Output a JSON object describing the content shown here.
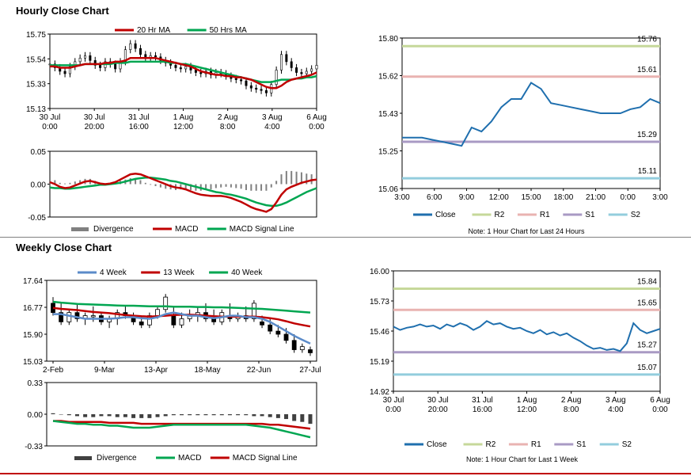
{
  "hourly": {
    "title": "Hourly Close Chart",
    "price": {
      "legend": [
        "20 Hr MA",
        "50 Hrs MA"
      ],
      "colors": {
        "ma20": "#c00000",
        "ma50": "#00a651",
        "candle": "#000000"
      },
      "ylim": [
        15.13,
        15.75
      ],
      "yticks": [
        "15.75",
        "15.54",
        "15.33",
        "15.13"
      ],
      "xticks": [
        [
          "30 Jul",
          "0:00"
        ],
        [
          "30 Jul",
          "20:00"
        ],
        [
          "31 Jul",
          "16:00"
        ],
        [
          "1 Aug",
          "12:00"
        ],
        [
          "2 Aug",
          "8:00"
        ],
        [
          "3 Aug",
          "4:00"
        ],
        [
          "6 Aug",
          "0:00"
        ]
      ],
      "close": [
        15.5,
        15.47,
        15.44,
        15.42,
        15.48,
        15.52,
        15.55,
        15.57,
        15.53,
        15.49,
        15.47,
        15.52,
        15.5,
        15.46,
        15.52,
        15.62,
        15.67,
        15.63,
        15.58,
        15.55,
        15.57,
        15.56,
        15.53,
        15.51,
        15.49,
        15.47,
        15.46,
        15.48,
        15.45,
        15.43,
        15.42,
        15.44,
        15.41,
        15.43,
        15.42,
        15.4,
        15.38,
        15.37,
        15.36,
        15.32,
        15.3,
        15.29,
        15.28,
        15.26,
        15.33,
        15.45,
        15.58,
        15.52,
        15.47,
        15.43,
        15.42,
        15.44,
        15.46,
        15.49
      ],
      "ma20": [
        15.48,
        15.48,
        15.47,
        15.47,
        15.47,
        15.48,
        15.49,
        15.5,
        15.5,
        15.5,
        15.5,
        15.51,
        15.51,
        15.52,
        15.52,
        15.53,
        15.55,
        15.55,
        15.55,
        15.55,
        15.55,
        15.55,
        15.54,
        15.53,
        15.52,
        15.51,
        15.5,
        15.49,
        15.48,
        15.46,
        15.44,
        15.43,
        15.42,
        15.41,
        15.41,
        15.4,
        15.4,
        15.39,
        15.39,
        15.38,
        15.37,
        15.35,
        15.33,
        15.31,
        15.3,
        15.3,
        15.32,
        15.35,
        15.37,
        15.38,
        15.39,
        15.4,
        15.41,
        15.43
      ],
      "ma50": [
        15.49,
        15.49,
        15.49,
        15.49,
        15.49,
        15.49,
        15.49,
        15.5,
        15.5,
        15.5,
        15.5,
        15.5,
        15.5,
        15.51,
        15.51,
        15.51,
        15.52,
        15.52,
        15.52,
        15.52,
        15.52,
        15.52,
        15.52,
        15.52,
        15.51,
        15.51,
        15.5,
        15.5,
        15.49,
        15.48,
        15.47,
        15.46,
        15.45,
        15.44,
        15.43,
        15.42,
        15.41,
        15.4,
        15.39,
        15.38,
        15.37,
        15.36,
        15.35,
        15.35,
        15.35,
        15.36,
        15.37,
        15.37,
        15.37,
        15.38,
        15.38,
        15.39,
        15.39,
        15.4
      ]
    },
    "macd": {
      "legend": [
        "Divergence",
        "MACD",
        "MACD Signal Line"
      ],
      "colors": {
        "macd": "#c00000",
        "signal": "#00a651",
        "div": "#808080"
      },
      "ylim": [
        -0.05,
        0.05
      ],
      "yticks": [
        "0.05",
        "0.00",
        "-0.05"
      ],
      "macd": [
        0.003,
        0.0,
        -0.004,
        -0.006,
        -0.005,
        -0.002,
        0.001,
        0.004,
        0.005,
        0.003,
        0.001,
        0.0,
        0.001,
        0.003,
        0.007,
        0.011,
        0.015,
        0.016,
        0.015,
        0.012,
        0.009,
        0.006,
        0.003,
        0.0,
        -0.003,
        -0.005,
        -0.006,
        -0.008,
        -0.011,
        -0.014,
        -0.016,
        -0.017,
        -0.018,
        -0.018,
        -0.018,
        -0.019,
        -0.021,
        -0.024,
        -0.027,
        -0.031,
        -0.035,
        -0.038,
        -0.04,
        -0.042,
        -0.038,
        -0.028,
        -0.016,
        -0.008,
        -0.004,
        -0.001,
        0.002,
        0.004,
        0.006,
        0.007
      ],
      "signal": [
        -0.005,
        -0.006,
        -0.006,
        -0.007,
        -0.007,
        -0.006,
        -0.005,
        -0.004,
        -0.003,
        -0.002,
        -0.001,
        -0.001,
        -0.0,
        0.001,
        0.002,
        0.004,
        0.006,
        0.008,
        0.009,
        0.01,
        0.01,
        0.009,
        0.008,
        0.007,
        0.005,
        0.004,
        0.002,
        0.0,
        -0.002,
        -0.004,
        -0.006,
        -0.008,
        -0.01,
        -0.012,
        -0.013,
        -0.015,
        -0.016,
        -0.018,
        -0.02,
        -0.022,
        -0.025,
        -0.028,
        -0.03,
        -0.032,
        -0.033,
        -0.033,
        -0.031,
        -0.028,
        -0.024,
        -0.02,
        -0.016,
        -0.012,
        -0.009,
        -0.006
      ]
    },
    "levels": {
      "ylim": [
        15.06,
        15.8
      ],
      "yticks": [
        "15.80",
        "15.62",
        "15.43",
        "15.25",
        "15.06"
      ],
      "xticks": [
        "3:00",
        "6:00",
        "9:00",
        "12:00",
        "15:00",
        "18:00",
        "21:00",
        "0:00",
        "3:00"
      ],
      "close": [
        15.31,
        15.31,
        15.31,
        15.3,
        15.29,
        15.28,
        15.27,
        15.36,
        15.34,
        15.39,
        15.46,
        15.5,
        15.5,
        15.58,
        15.55,
        15.48,
        15.47,
        15.46,
        15.45,
        15.44,
        15.43,
        15.43,
        15.43,
        15.45,
        15.46,
        15.5,
        15.48
      ],
      "R2": 15.76,
      "R1": 15.61,
      "S1": 15.29,
      "S2": 15.11,
      "level_labels": {
        "R2": "15.76",
        "R1": "15.61",
        "S1": "15.29",
        "S2": "15.11"
      },
      "legend": [
        "Close",
        "R2",
        "R1",
        "S1",
        "S2"
      ],
      "colors": {
        "close": "#1f6fae",
        "R2": "#c6d89a",
        "R1": "#e9b3b1",
        "S1": "#a99ac4",
        "S2": "#93cddd"
      },
      "note": "Note: 1 Hour Chart for Last 24 Hours"
    }
  },
  "weekly": {
    "title": "Weekly Close Chart",
    "price": {
      "legend": [
        "4 Week",
        "13 Week",
        "40 Week"
      ],
      "colors": {
        "w4": "#5b8bc9",
        "w13": "#c00000",
        "w40": "#00a651"
      },
      "ylim": [
        15.03,
        17.64
      ],
      "yticks": [
        "17.64",
        "16.77",
        "15.90",
        "15.03"
      ],
      "xticks": [
        "2-Feb",
        "9-Mar",
        "13-Apr",
        "18-May",
        "22-Jun",
        "27-Jul"
      ],
      "candles": [
        [
          16.9,
          17.1,
          16.5,
          16.6
        ],
        [
          16.6,
          16.9,
          16.2,
          16.3
        ],
        [
          16.3,
          16.7,
          16.2,
          16.6
        ],
        [
          16.6,
          16.9,
          16.3,
          16.4
        ],
        [
          16.4,
          16.6,
          16.2,
          16.5
        ],
        [
          16.5,
          16.8,
          16.3,
          16.5
        ],
        [
          16.5,
          16.6,
          16.2,
          16.3
        ],
        [
          16.3,
          16.5,
          16.1,
          16.4
        ],
        [
          16.4,
          16.7,
          16.2,
          16.6
        ],
        [
          16.6,
          16.8,
          16.4,
          16.5
        ],
        [
          16.5,
          16.6,
          16.2,
          16.3
        ],
        [
          16.3,
          16.5,
          16.1,
          16.2
        ],
        [
          16.2,
          16.6,
          16.1,
          16.5
        ],
        [
          16.5,
          16.8,
          16.4,
          16.7
        ],
        [
          16.7,
          17.2,
          16.6,
          17.1
        ],
        [
          16.5,
          16.8,
          16.1,
          16.2
        ],
        [
          16.2,
          16.6,
          16.1,
          16.4
        ],
        [
          16.4,
          16.7,
          16.3,
          16.5
        ],
        [
          16.5,
          16.8,
          16.3,
          16.6
        ],
        [
          16.6,
          16.9,
          16.3,
          16.4
        ],
        [
          16.4,
          16.7,
          16.2,
          16.3
        ],
        [
          16.3,
          16.7,
          16.2,
          16.6
        ],
        [
          16.5,
          16.9,
          16.3,
          16.4
        ],
        [
          16.4,
          16.6,
          16.3,
          16.5
        ],
        [
          16.5,
          16.8,
          16.3,
          16.4
        ],
        [
          16.4,
          17.0,
          16.3,
          16.9
        ],
        [
          16.3,
          16.5,
          16.1,
          16.2
        ],
        [
          16.2,
          16.4,
          15.9,
          16.0
        ],
        [
          16.0,
          16.2,
          15.8,
          15.9
        ],
        [
          15.9,
          16.1,
          15.6,
          15.7
        ],
        [
          15.7,
          15.9,
          15.3,
          15.4
        ],
        [
          15.4,
          15.6,
          15.3,
          15.5
        ],
        [
          15.4,
          15.5,
          15.2,
          15.3
        ]
      ],
      "w4": [
        16.55,
        16.55,
        16.5,
        16.45,
        16.4,
        16.4,
        16.4,
        16.4,
        16.42,
        16.45,
        16.45,
        16.42,
        16.4,
        16.45,
        16.55,
        16.6,
        16.55,
        16.5,
        16.5,
        16.45,
        16.42,
        16.45,
        16.5,
        16.5,
        16.45,
        16.45,
        16.4,
        16.3,
        16.15,
        16.0,
        15.85,
        15.72,
        15.6
      ],
      "w13": [
        16.75,
        16.72,
        16.7,
        16.68,
        16.65,
        16.62,
        16.6,
        16.58,
        16.55,
        16.52,
        16.5,
        16.48,
        16.47,
        16.48,
        16.5,
        16.52,
        16.53,
        16.53,
        16.52,
        16.5,
        16.48,
        16.47,
        16.47,
        16.47,
        16.47,
        16.47,
        16.45,
        16.42,
        16.38,
        16.32,
        16.25,
        16.2,
        16.15
      ],
      "w40": [
        16.95,
        16.92,
        16.9,
        16.88,
        16.87,
        16.86,
        16.85,
        16.84,
        16.83,
        16.82,
        16.82,
        16.81,
        16.8,
        16.8,
        16.8,
        16.79,
        16.79,
        16.79,
        16.78,
        16.78,
        16.77,
        16.77,
        16.76,
        16.75,
        16.74,
        16.73,
        16.72,
        16.7,
        16.68,
        16.66,
        16.64,
        16.62,
        16.6
      ]
    },
    "macd": {
      "legend": [
        "Divergence",
        "MACD",
        "MACD Signal Line"
      ],
      "colors": {
        "div": "#404040",
        "macd": "#00a651",
        "signal": "#c00000"
      },
      "ylim": [
        -0.33,
        0.33
      ],
      "yticks": [
        "0.33",
        "0.00",
        "-0.33"
      ],
      "div": [
        0.01,
        0.0,
        -0.01,
        -0.02,
        -0.03,
        -0.03,
        -0.02,
        -0.02,
        -0.03,
        -0.03,
        -0.04,
        -0.04,
        -0.04,
        -0.03,
        -0.02,
        -0.01,
        -0.01,
        -0.01,
        -0.01,
        -0.01,
        -0.01,
        -0.01,
        -0.01,
        -0.01,
        -0.01,
        -0.02,
        -0.02,
        -0.03,
        -0.04,
        -0.05,
        -0.07,
        -0.08,
        -0.1
      ],
      "macd": [
        -0.07,
        -0.08,
        -0.09,
        -0.1,
        -0.1,
        -0.11,
        -0.11,
        -0.12,
        -0.12,
        -0.13,
        -0.14,
        -0.14,
        -0.14,
        -0.13,
        -0.12,
        -0.11,
        -0.11,
        -0.11,
        -0.11,
        -0.11,
        -0.11,
        -0.11,
        -0.11,
        -0.11,
        -0.11,
        -0.12,
        -0.13,
        -0.14,
        -0.16,
        -0.18,
        -0.2,
        -0.22,
        -0.24
      ],
      "signal": [
        -0.07,
        -0.07,
        -0.08,
        -0.08,
        -0.08,
        -0.08,
        -0.08,
        -0.09,
        -0.09,
        -0.09,
        -0.09,
        -0.1,
        -0.1,
        -0.1,
        -0.1,
        -0.1,
        -0.1,
        -0.1,
        -0.1,
        -0.1,
        -0.1,
        -0.1,
        -0.1,
        -0.1,
        -0.1,
        -0.1,
        -0.1,
        -0.11,
        -0.11,
        -0.12,
        -0.13,
        -0.14,
        -0.15
      ]
    },
    "levels": {
      "ylim": [
        14.92,
        16.0
      ],
      "yticks": [
        "16.00",
        "15.73",
        "15.46",
        "15.19",
        "14.92"
      ],
      "xticks": [
        [
          "30 Jul",
          "0:00"
        ],
        [
          "30 Jul",
          "20:00"
        ],
        [
          "31 Jul",
          "16:00"
        ],
        [
          "1 Aug",
          "12:00"
        ],
        [
          "2 Aug",
          "8:00"
        ],
        [
          "3 Aug",
          "4:00"
        ],
        [
          "6 Aug",
          "0:00"
        ]
      ],
      "close": [
        15.5,
        15.47,
        15.49,
        15.5,
        15.52,
        15.5,
        15.51,
        15.48,
        15.52,
        15.5,
        15.53,
        15.51,
        15.47,
        15.5,
        15.55,
        15.52,
        15.53,
        15.5,
        15.48,
        15.49,
        15.46,
        15.44,
        15.47,
        15.43,
        15.45,
        15.42,
        15.44,
        15.4,
        15.37,
        15.33,
        15.3,
        15.31,
        15.29,
        15.3,
        15.28,
        15.35,
        15.53,
        15.47,
        15.44,
        15.46,
        15.48
      ],
      "R2": 15.84,
      "R1": 15.65,
      "S1": 15.27,
      "S2": 15.07,
      "level_labels": {
        "R2": "15.84",
        "R1": "15.65",
        "S1": "15.27",
        "S2": "15.07"
      },
      "legend": [
        "Close",
        "R2",
        "R1",
        "S1",
        "S2"
      ],
      "colors": {
        "close": "#1f6fae",
        "R2": "#c6d89a",
        "R1": "#e9b3b1",
        "S1": "#a99ac4",
        "S2": "#93cddd"
      },
      "note": "Note: 1 Hour Chart for Last 1 Week"
    }
  }
}
